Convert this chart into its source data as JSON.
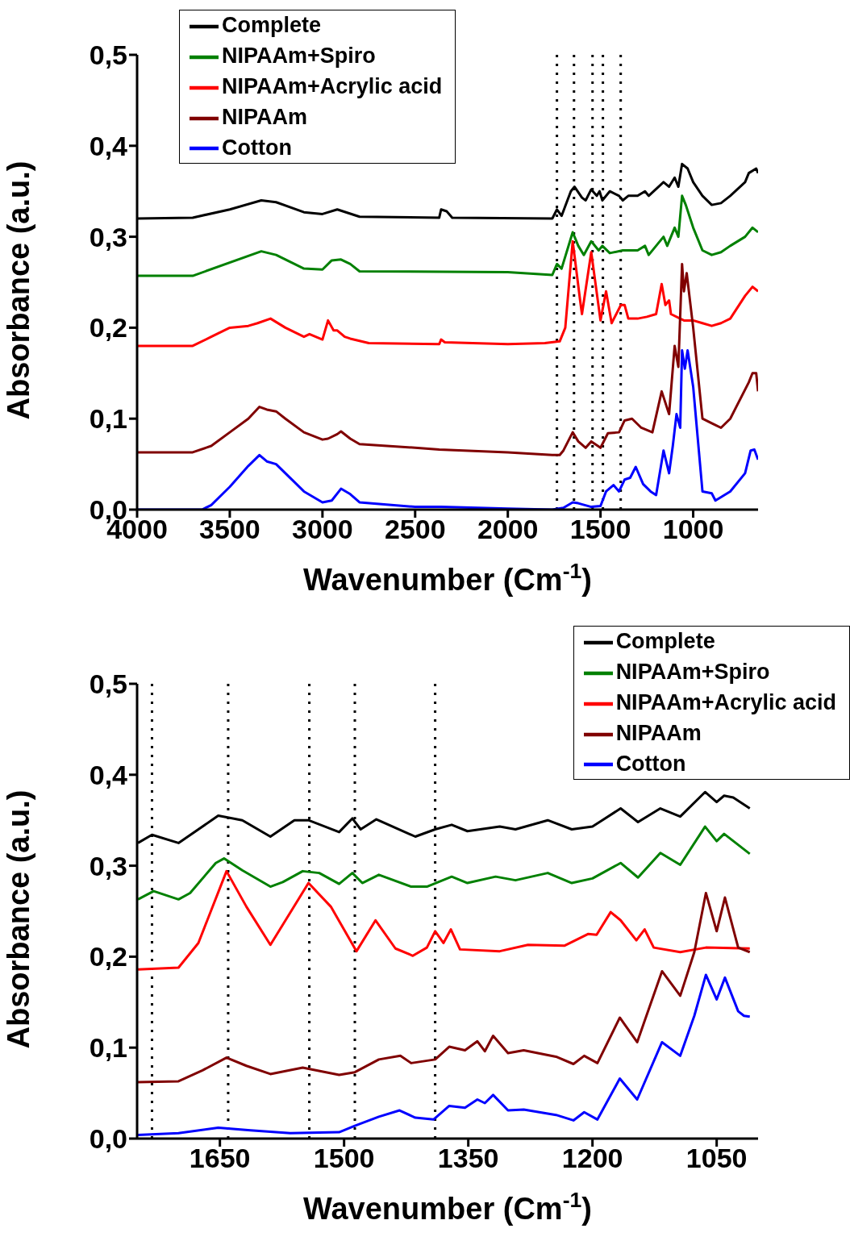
{
  "chart_data": [
    {
      "type": "line",
      "xlabel": "Wavenumber (Cm$^{-1}$)",
      "ylabel": "Absorbance (a.u.)",
      "xlim": [
        4000,
        650
      ],
      "xticks": [
        4000,
        3500,
        3000,
        2500,
        2000,
        1500,
        1000
      ],
      "ylim": [
        0,
        0.5
      ],
      "yticks": [
        {
          "value": 0,
          "label": "0,0"
        },
        {
          "value": 0.1,
          "label": "0,1"
        },
        {
          "value": 0.2,
          "label": "0,2"
        },
        {
          "value": 0.3,
          "label": "0,3"
        },
        {
          "value": 0.4,
          "label": "0,4"
        },
        {
          "value": 0.5,
          "label": "0,5"
        }
      ],
      "grid": false,
      "legend": "top",
      "marker": "none",
      "line_style": "solid",
      "ref_lines": [
        {
          "axis": "x",
          "value": 1735,
          "color": "#000000",
          "line_style": "dotted"
        },
        {
          "axis": "x",
          "value": 1643,
          "color": "#000000",
          "line_style": "dotted"
        },
        {
          "axis": "x",
          "value": 1543,
          "color": "#000000",
          "line_style": "dotted"
        },
        {
          "axis": "x",
          "value": 1487,
          "color": "#000000",
          "line_style": "dotted"
        },
        {
          "axis": "x",
          "value": 1391,
          "color": "#000000",
          "line_style": "dotted"
        }
      ],
      "series": [
        {
          "name": "Complete",
          "color": "#000000",
          "x": [
            4000,
            3700,
            3500,
            3330,
            3250,
            3100,
            3000,
            2920,
            2800,
            2370,
            2360,
            2330,
            2300,
            1760,
            1735,
            1710,
            1660,
            1640,
            1600,
            1580,
            1550,
            1520,
            1505,
            1490,
            1450,
            1400,
            1380,
            1350,
            1300,
            1260,
            1240,
            1160,
            1130,
            1100,
            1080,
            1060,
            1030,
            1000,
            950,
            900,
            850,
            800,
            720,
            700,
            660,
            650
          ],
          "values": [
            0.32,
            0.321,
            0.33,
            0.34,
            0.338,
            0.327,
            0.325,
            0.33,
            0.322,
            0.321,
            0.33,
            0.328,
            0.321,
            0.32,
            0.33,
            0.323,
            0.35,
            0.355,
            0.343,
            0.34,
            0.352,
            0.345,
            0.35,
            0.34,
            0.35,
            0.345,
            0.34,
            0.345,
            0.345,
            0.35,
            0.345,
            0.36,
            0.355,
            0.365,
            0.355,
            0.38,
            0.375,
            0.36,
            0.345,
            0.335,
            0.337,
            0.345,
            0.36,
            0.37,
            0.375,
            0.37
          ]
        },
        {
          "name": "NIPAAm+Spiro",
          "color": "#008000",
          "x": [
            4000,
            3700,
            3330,
            3250,
            3100,
            3000,
            2950,
            2900,
            2850,
            2800,
            2000,
            1760,
            1735,
            1710,
            1650,
            1620,
            1590,
            1550,
            1510,
            1490,
            1450,
            1380,
            1300,
            1260,
            1240,
            1160,
            1140,
            1100,
            1080,
            1060,
            1040,
            1000,
            950,
            900,
            850,
            800,
            720,
            680,
            650
          ],
          "values": [
            0.257,
            0.257,
            0.284,
            0.28,
            0.265,
            0.264,
            0.274,
            0.275,
            0.27,
            0.262,
            0.261,
            0.258,
            0.27,
            0.265,
            0.305,
            0.29,
            0.28,
            0.295,
            0.285,
            0.29,
            0.282,
            0.285,
            0.285,
            0.29,
            0.28,
            0.3,
            0.29,
            0.31,
            0.3,
            0.345,
            0.335,
            0.31,
            0.285,
            0.28,
            0.283,
            0.29,
            0.3,
            0.31,
            0.305
          ]
        },
        {
          "name": "NIPAAm+Acrylic acid",
          "color": "#ff0000",
          "x": [
            4000,
            3700,
            3600,
            3500,
            3400,
            3350,
            3280,
            3200,
            3100,
            3070,
            3000,
            2970,
            2940,
            2920,
            2880,
            2850,
            2750,
            2370,
            2360,
            2340,
            2000,
            1800,
            1720,
            1690,
            1650,
            1610,
            1600,
            1550,
            1500,
            1470,
            1440,
            1390,
            1370,
            1350,
            1300,
            1250,
            1200,
            1170,
            1150,
            1130,
            1120,
            1050,
            1000,
            950,
            900,
            850,
            800,
            720,
            680,
            650
          ],
          "values": [
            0.18,
            0.18,
            0.19,
            0.2,
            0.202,
            0.205,
            0.21,
            0.2,
            0.19,
            0.193,
            0.187,
            0.208,
            0.197,
            0.197,
            0.19,
            0.188,
            0.183,
            0.182,
            0.187,
            0.184,
            0.182,
            0.183,
            0.185,
            0.2,
            0.295,
            0.23,
            0.215,
            0.283,
            0.208,
            0.24,
            0.205,
            0.225,
            0.225,
            0.21,
            0.21,
            0.212,
            0.215,
            0.248,
            0.225,
            0.23,
            0.215,
            0.208,
            0.208,
            0.205,
            0.202,
            0.205,
            0.21,
            0.235,
            0.245,
            0.24
          ]
        },
        {
          "name": "NIPAAm",
          "color": "#800000",
          "x": [
            4000,
            3700,
            3600,
            3500,
            3400,
            3340,
            3300,
            3250,
            3200,
            3100,
            3000,
            2970,
            2920,
            2900,
            2850,
            2800,
            2500,
            2370,
            2000,
            1760,
            1720,
            1700,
            1650,
            1620,
            1580,
            1550,
            1500,
            1460,
            1400,
            1370,
            1330,
            1280,
            1220,
            1170,
            1130,
            1100,
            1080,
            1060,
            1050,
            1035,
            1000,
            950,
            900,
            880,
            850,
            800,
            700,
            680,
            660,
            650
          ],
          "values": [
            0.063,
            0.063,
            0.07,
            0.085,
            0.1,
            0.113,
            0.11,
            0.108,
            0.1,
            0.085,
            0.077,
            0.078,
            0.083,
            0.086,
            0.078,
            0.072,
            0.068,
            0.066,
            0.063,
            0.06,
            0.06,
            0.065,
            0.085,
            0.075,
            0.068,
            0.075,
            0.068,
            0.084,
            0.085,
            0.098,
            0.1,
            0.09,
            0.085,
            0.13,
            0.105,
            0.18,
            0.157,
            0.27,
            0.24,
            0.26,
            0.2,
            0.1,
            0.095,
            0.093,
            0.09,
            0.1,
            0.14,
            0.15,
            0.15,
            0.13
          ]
        },
        {
          "name": "Cotton",
          "color": "#0000ff",
          "x": [
            4000,
            3650,
            3600,
            3500,
            3400,
            3340,
            3300,
            3250,
            3200,
            3100,
            3000,
            2950,
            2900,
            2850,
            2800,
            2500,
            2360,
            2000,
            1760,
            1700,
            1650,
            1620,
            1550,
            1500,
            1470,
            1430,
            1400,
            1370,
            1340,
            1310,
            1270,
            1230,
            1200,
            1160,
            1130,
            1110,
            1090,
            1070,
            1060,
            1045,
            1030,
            1000,
            950,
            900,
            880,
            800,
            720,
            690,
            670,
            650
          ],
          "values": [
            0,
            0,
            0.005,
            0.025,
            0.048,
            0.06,
            0.053,
            0.05,
            0.04,
            0.02,
            0.008,
            0.01,
            0.023,
            0.017,
            0.008,
            0.003,
            0.003,
            0.001,
            0,
            0.002,
            0.008,
            0.007,
            0.003,
            0.004,
            0.02,
            0.027,
            0.02,
            0.033,
            0.035,
            0.047,
            0.028,
            0.02,
            0.016,
            0.065,
            0.04,
            0.07,
            0.105,
            0.09,
            0.175,
            0.155,
            0.175,
            0.135,
            0.02,
            0.018,
            0.01,
            0.02,
            0.04,
            0.065,
            0.066,
            0.055
          ]
        }
      ]
    },
    {
      "type": "line",
      "xlabel": "Wavenumber (Cm$^{-1}$)",
      "ylabel": "Absorbance (a.u.)",
      "xlim": [
        1750,
        1000
      ],
      "xticks": [
        1650,
        1500,
        1350,
        1200,
        1050
      ],
      "ylim": [
        0,
        0.5
      ],
      "yticks": [
        {
          "value": 0,
          "label": "0,0"
        },
        {
          "value": 0.1,
          "label": "0,1"
        },
        {
          "value": 0.2,
          "label": "0,2"
        },
        {
          "value": 0.3,
          "label": "0,3"
        },
        {
          "value": 0.4,
          "label": "0,4"
        },
        {
          "value": 0.5,
          "label": "0,5"
        }
      ],
      "grid": false,
      "legend": "top right",
      "marker": "none",
      "line_style": "solid",
      "ref_lines": [
        {
          "axis": "x",
          "value": 1732,
          "color": "#000000",
          "line_style": "dotted"
        },
        {
          "axis": "x",
          "value": 1640,
          "color": "#000000",
          "line_style": "dotted"
        },
        {
          "axis": "x",
          "value": 1542,
          "color": "#000000",
          "line_style": "dotted"
        },
        {
          "axis": "x",
          "value": 1487,
          "color": "#000000",
          "line_style": "dotted"
        },
        {
          "axis": "x",
          "value": 1390,
          "color": "#000000",
          "line_style": "dotted"
        }
      ],
      "series": [
        {
          "name": "Complete",
          "color": "#000000",
          "x": [
            1749,
            1732,
            1700,
            1652,
            1623,
            1589,
            1560,
            1543,
            1506,
            1490,
            1480,
            1461,
            1414,
            1390,
            1370,
            1351,
            1312,
            1293,
            1254,
            1225,
            1200,
            1166,
            1145,
            1118,
            1094,
            1064,
            1050,
            1041,
            1030,
            1010
          ],
          "values": [
            0.325,
            0.334,
            0.325,
            0.355,
            0.35,
            0.332,
            0.35,
            0.35,
            0.337,
            0.352,
            0.34,
            0.351,
            0.332,
            0.34,
            0.345,
            0.338,
            0.343,
            0.34,
            0.35,
            0.34,
            0.343,
            0.363,
            0.348,
            0.363,
            0.354,
            0.381,
            0.37,
            0.377,
            0.375,
            0.363
          ]
        },
        {
          "name": "NIPAAm+Spiro",
          "color": "#008000",
          "x": [
            1749,
            1730,
            1700,
            1686,
            1655,
            1645,
            1623,
            1589,
            1574,
            1550,
            1530,
            1506,
            1490,
            1478,
            1458,
            1419,
            1400,
            1370,
            1351,
            1317,
            1293,
            1254,
            1225,
            1200,
            1166,
            1145,
            1118,
            1094,
            1064,
            1050,
            1041,
            1010
          ],
          "values": [
            0.263,
            0.272,
            0.263,
            0.27,
            0.303,
            0.308,
            0.295,
            0.277,
            0.282,
            0.294,
            0.292,
            0.28,
            0.292,
            0.281,
            0.29,
            0.277,
            0.277,
            0.288,
            0.281,
            0.288,
            0.284,
            0.292,
            0.281,
            0.286,
            0.303,
            0.287,
            0.314,
            0.301,
            0.343,
            0.327,
            0.335,
            0.313
          ]
        },
        {
          "name": "NIPAAm+Acrylic acid",
          "color": "#ff0000",
          "x": [
            1749,
            1700,
            1676,
            1642,
            1618,
            1589,
            1543,
            1516,
            1485,
            1462,
            1438,
            1417,
            1400,
            1390,
            1380,
            1371,
            1360,
            1312,
            1278,
            1234,
            1205,
            1195,
            1178,
            1166,
            1147,
            1137,
            1126,
            1094,
            1063,
            1010
          ],
          "values": [
            0.186,
            0.188,
            0.215,
            0.294,
            0.255,
            0.213,
            0.281,
            0.255,
            0.206,
            0.24,
            0.209,
            0.201,
            0.21,
            0.228,
            0.215,
            0.23,
            0.208,
            0.206,
            0.213,
            0.212,
            0.225,
            0.224,
            0.249,
            0.24,
            0.218,
            0.23,
            0.21,
            0.205,
            0.21,
            0.209
          ]
        },
        {
          "name": "NIPAAm",
          "color": "#800000",
          "x": [
            1749,
            1700,
            1671,
            1642,
            1618,
            1589,
            1550,
            1506,
            1487,
            1458,
            1432,
            1419,
            1390,
            1373,
            1354,
            1339,
            1330,
            1320,
            1302,
            1283,
            1244,
            1223,
            1210,
            1194,
            1167,
            1146,
            1116,
            1094,
            1077,
            1063,
            1050,
            1040,
            1024,
            1010
          ],
          "values": [
            0.062,
            0.063,
            0.075,
            0.089,
            0.08,
            0.071,
            0.078,
            0.07,
            0.073,
            0.087,
            0.091,
            0.083,
            0.087,
            0.101,
            0.097,
            0.107,
            0.096,
            0.113,
            0.094,
            0.097,
            0.09,
            0.082,
            0.091,
            0.083,
            0.133,
            0.106,
            0.184,
            0.157,
            0.205,
            0.27,
            0.228,
            0.265,
            0.21,
            0.205
          ]
        },
        {
          "name": "Cotton",
          "color": "#0000ff",
          "x": [
            1749,
            1700,
            1652,
            1613,
            1565,
            1506,
            1487,
            1458,
            1433,
            1414,
            1392,
            1373,
            1354,
            1339,
            1330,
            1320,
            1302,
            1283,
            1244,
            1223,
            1210,
            1194,
            1167,
            1146,
            1116,
            1094,
            1077,
            1063,
            1050,
            1040,
            1024,
            1017,
            1010
          ],
          "values": [
            0.004,
            0.006,
            0.012,
            0.009,
            0.006,
            0.007,
            0.014,
            0.024,
            0.031,
            0.023,
            0.021,
            0.036,
            0.034,
            0.043,
            0.039,
            0.048,
            0.031,
            0.032,
            0.026,
            0.02,
            0.029,
            0.021,
            0.066,
            0.043,
            0.106,
            0.091,
            0.135,
            0.18,
            0.153,
            0.177,
            0.14,
            0.135,
            0.134
          ]
        }
      ]
    }
  ]
}
